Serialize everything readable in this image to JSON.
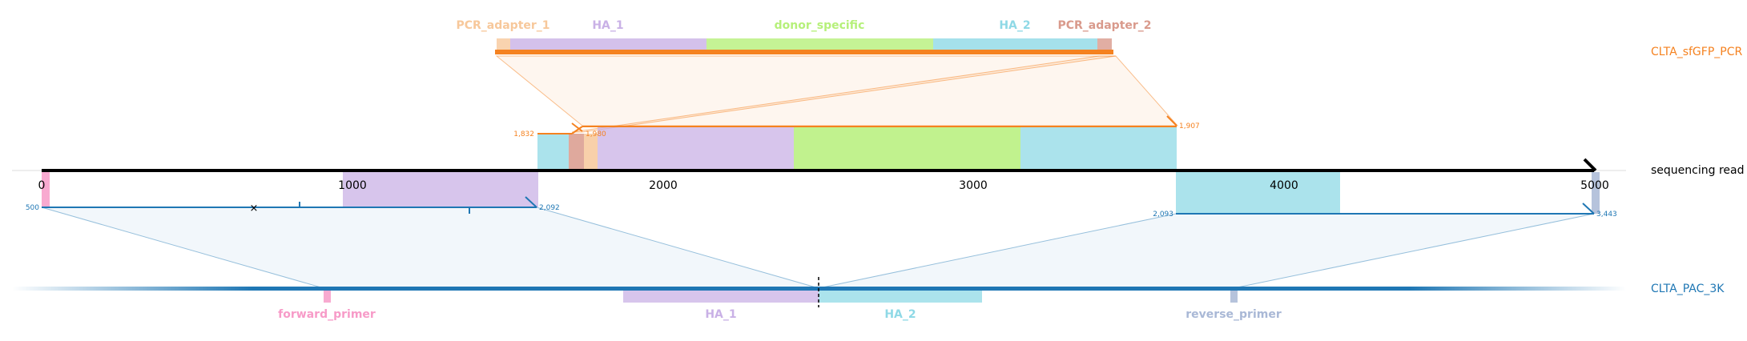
{
  "colors": {
    "orange": "#f58220",
    "blue": "#1f77b4",
    "axis": "#000000",
    "PCR_adapter_1": "#f7c89b",
    "HA_1": "#c9b1e6",
    "donor_specific": "#b6f07a",
    "HA_2": "#8fd9e6",
    "PCR_adapter_2": "#d99a8c",
    "forward_primer": "#f79bc8",
    "reverse_primer": "#a9b8d6"
  },
  "rows": {
    "pcr": {
      "label": "CLTA_sfGFP_PCR",
      "color": "#f58220"
    },
    "read": {
      "label": "sequencing read",
      "color": "#000000"
    },
    "ref": {
      "label": "CLTA_PAC_3K",
      "color": "#1f77b4"
    }
  },
  "pcr_features": [
    {
      "name": "PCR_adapter_1",
      "label": "PCR_adapter_1",
      "color": "#f7c89b"
    },
    {
      "name": "HA_1",
      "label": "HA_1",
      "color": "#c9b1e6"
    },
    {
      "name": "donor_specific",
      "label": "donor_specific",
      "color": "#b6f07a"
    },
    {
      "name": "HA_2",
      "label": "HA_2",
      "color": "#8fd9e6"
    },
    {
      "name": "PCR_adapter_2",
      "label": "PCR_adapter_2",
      "color": "#d99a8c"
    }
  ],
  "ref_features": [
    {
      "name": "forward_primer",
      "label": "forward_primer",
      "color": "#f79bc8"
    },
    {
      "name": "HA_1",
      "label": "HA_1",
      "color": "#c9b1e6"
    },
    {
      "name": "HA_2",
      "label": "HA_2",
      "color": "#8fd9e6"
    },
    {
      "name": "reverse_primer",
      "label": "reverse_primer",
      "color": "#a9b8d6"
    }
  ],
  "read_axis": {
    "min": 0,
    "max": 5000,
    "ticks": [
      {
        "value": 0,
        "label": "0"
      },
      {
        "value": 1000,
        "label": "1000"
      },
      {
        "value": 2000,
        "label": "2000"
      },
      {
        "value": 3000,
        "label": "3000"
      },
      {
        "value": 4000,
        "label": "4000"
      },
      {
        "value": 5000,
        "label": "5000"
      }
    ]
  },
  "alignments": {
    "pcr_alignment": {
      "start_label": "1,832",
      "end_label": "1,907"
    },
    "pcr_alignment_2": {
      "start_label": "1,980"
    },
    "ref_left": {
      "start_label": "500",
      "end_label": "2,092"
    },
    "ref_right": {
      "start_label": "2,093",
      "end_label": "3,443"
    }
  }
}
